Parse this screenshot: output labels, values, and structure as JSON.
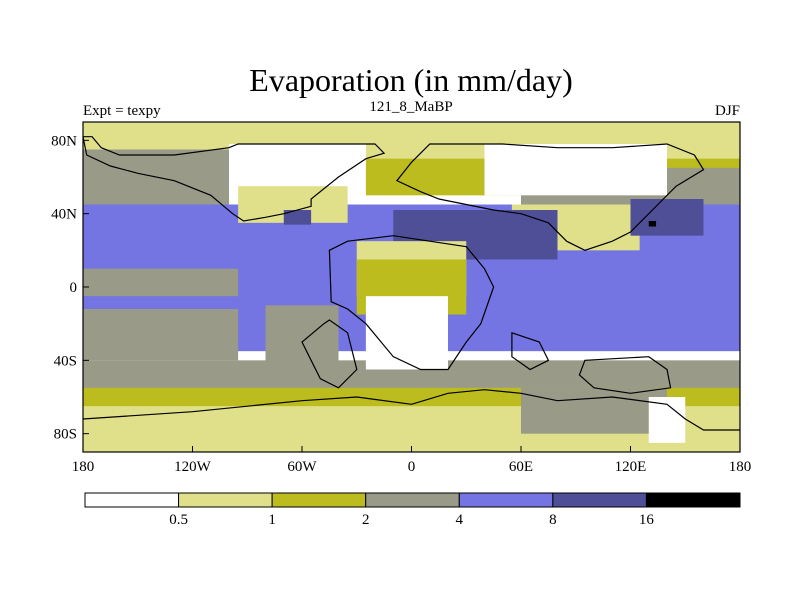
{
  "chart_data": {
    "type": "heatmap",
    "title": "Evaporation (in mm/day)",
    "left_label": "Expt = texpy",
    "center_label": "121_8_MaBP",
    "right_label": "DJF",
    "x_range": [
      -180,
      180
    ],
    "y_range": [
      -90,
      90
    ],
    "x_ticks": [
      {
        "value": -180,
        "label": "180"
      },
      {
        "value": -120,
        "label": "120W"
      },
      {
        "value": -60,
        "label": "60W"
      },
      {
        "value": 0,
        "label": "0"
      },
      {
        "value": 60,
        "label": "60E"
      },
      {
        "value": 120,
        "label": "120E"
      },
      {
        "value": 180,
        "label": "180"
      }
    ],
    "y_ticks": [
      {
        "value": 80,
        "label": "80N"
      },
      {
        "value": 40,
        "label": "40N"
      },
      {
        "value": 0,
        "label": "0"
      },
      {
        "value": -40,
        "label": "40S"
      },
      {
        "value": -80,
        "label": "80S"
      }
    ],
    "levels": [
      "0.5",
      "1",
      "2",
      "4",
      "8",
      "16"
    ],
    "bins": [
      {
        "range": "<0.5",
        "color": "#ffffff"
      },
      {
        "range": "0.5-1",
        "color": "#e0e08a"
      },
      {
        "range": "1-2",
        "color": "#bcbc1f"
      },
      {
        "range": "2-4",
        "color": "#9a9a88"
      },
      {
        "range": "4-8",
        "color": "#7474e2"
      },
      {
        "range": "8-16",
        "color": "#4f4f98"
      },
      {
        "range": ">16",
        "color": "#000000"
      }
    ],
    "regions": [
      {
        "name": "north-polar-band",
        "bin": 1,
        "lon": [
          -180,
          180
        ],
        "lat": [
          65,
          90
        ]
      },
      {
        "name": "north-mid-band",
        "bin": 2,
        "lon": [
          -180,
          180
        ],
        "lat": [
          50,
          70
        ]
      },
      {
        "name": "north-pacific-band",
        "bin": 3,
        "lon": [
          -180,
          -60
        ],
        "lat": [
          40,
          75
        ]
      },
      {
        "name": "north-east-asia-band",
        "bin": 3,
        "lon": [
          60,
          180
        ],
        "lat": [
          40,
          65
        ]
      },
      {
        "name": "tropical-ocean",
        "bin": 4,
        "lon": [
          -180,
          180
        ],
        "lat": [
          -35,
          45
        ]
      },
      {
        "name": "east-pacific-tongue",
        "bin": 3,
        "lon": [
          -180,
          -95
        ],
        "lat": [
          -5,
          10
        ]
      },
      {
        "name": "south-pacific-gray",
        "bin": 3,
        "lon": [
          -180,
          -95
        ],
        "lat": [
          -40,
          -12
        ]
      },
      {
        "name": "south-mid-band",
        "bin": 3,
        "lon": [
          -180,
          180
        ],
        "lat": [
          -60,
          -40
        ]
      },
      {
        "name": "southern-olive-band",
        "bin": 2,
        "lon": [
          -180,
          180
        ],
        "lat": [
          -70,
          -55
        ]
      },
      {
        "name": "southern-yellow-band",
        "bin": 1,
        "lon": [
          -180,
          180
        ],
        "lat": [
          -90,
          -65
        ]
      },
      {
        "name": "north-america",
        "bin": 0,
        "lon": [
          -100,
          -25
        ],
        "lat": [
          45,
          78
        ]
      },
      {
        "name": "eurasia",
        "bin": 0,
        "lon": [
          40,
          140
        ],
        "lat": [
          50,
          78
        ]
      },
      {
        "name": "north-america-south",
        "bin": 1,
        "lon": [
          -95,
          -35
        ],
        "lat": [
          35,
          55
        ]
      },
      {
        "name": "central-asia",
        "bin": 1,
        "lon": [
          55,
          125
        ],
        "lat": [
          20,
          45
        ]
      },
      {
        "name": "kuroshio",
        "bin": 5,
        "lon": [
          120,
          160
        ],
        "lat": [
          28,
          48
        ]
      },
      {
        "name": "tethys-north",
        "bin": 5,
        "lon": [
          -10,
          80
        ],
        "lat": [
          15,
          42
        ]
      },
      {
        "name": "gulf-stream",
        "bin": 5,
        "lon": [
          -70,
          -55
        ],
        "lat": [
          34,
          42
        ]
      },
      {
        "name": "africa-north",
        "bin": 1,
        "lon": [
          -30,
          30
        ],
        "lat": [
          -5,
          25
        ]
      },
      {
        "name": "africa-olive",
        "bin": 2,
        "lon": [
          -30,
          30
        ],
        "lat": [
          -15,
          15
        ]
      },
      {
        "name": "africa-south",
        "bin": 0,
        "lon": [
          -25,
          20
        ],
        "lat": [
          -45,
          -5
        ]
      },
      {
        "name": "south-america",
        "bin": 3,
        "lon": [
          -80,
          -40
        ],
        "lat": [
          -45,
          -10
        ]
      },
      {
        "name": "antarctica-east",
        "bin": 3,
        "lon": [
          60,
          140
        ],
        "lat": [
          -80,
          -55
        ]
      },
      {
        "name": "antarctica-west-ice",
        "bin": 0,
        "lon": [
          130,
          150
        ],
        "lat": [
          -85,
          -60
        ]
      },
      {
        "name": "black-dot",
        "bin": 6,
        "lon": [
          130,
          134
        ],
        "lat": [
          33,
          36
        ]
      }
    ],
    "continents": [
      {
        "name": "north-america-outline",
        "points": [
          [
            -175,
            82
          ],
          [
            -170,
            76
          ],
          [
            -160,
            72
          ],
          [
            -130,
            72
          ],
          [
            -100,
            76
          ],
          [
            -95,
            78
          ],
          [
            -60,
            78
          ],
          [
            -20,
            78
          ],
          [
            -15,
            73
          ],
          [
            -25,
            70
          ],
          [
            -40,
            60
          ],
          [
            -55,
            48
          ],
          [
            -55,
            44
          ],
          [
            -70,
            40
          ],
          [
            -80,
            38
          ],
          [
            -92,
            36
          ],
          [
            -98,
            40
          ],
          [
            -110,
            50
          ],
          [
            -130,
            58
          ],
          [
            -150,
            62
          ],
          [
            -165,
            66
          ],
          [
            -178,
            72
          ],
          [
            -180,
            82
          ]
        ]
      },
      {
        "name": "eurasia-outline",
        "points": [
          [
            10,
            78
          ],
          [
            50,
            78
          ],
          [
            80,
            76
          ],
          [
            110,
            76
          ],
          [
            140,
            78
          ],
          [
            155,
            72
          ],
          [
            160,
            64
          ],
          [
            145,
            55
          ],
          [
            135,
            45
          ],
          [
            127,
            37
          ],
          [
            120,
            30
          ],
          [
            110,
            25
          ],
          [
            95,
            20
          ],
          [
            85,
            25
          ],
          [
            75,
            35
          ],
          [
            60,
            40
          ],
          [
            45,
            42
          ],
          [
            30,
            45
          ],
          [
            15,
            48
          ],
          [
            5,
            52
          ],
          [
            -8,
            58
          ],
          [
            0,
            68
          ],
          [
            10,
            78
          ]
        ]
      },
      {
        "name": "africa-outline",
        "points": [
          [
            -45,
            20
          ],
          [
            -35,
            25
          ],
          [
            -10,
            28
          ],
          [
            10,
            25
          ],
          [
            30,
            22
          ],
          [
            40,
            10
          ],
          [
            45,
            0
          ],
          [
            38,
            -20
          ],
          [
            30,
            -30
          ],
          [
            20,
            -45
          ],
          [
            5,
            -45
          ],
          [
            -10,
            -38
          ],
          [
            -25,
            -20
          ],
          [
            -35,
            -12
          ],
          [
            -44,
            -8
          ],
          [
            -45,
            20
          ]
        ]
      },
      {
        "name": "south-america-outline",
        "points": [
          [
            -45,
            -18
          ],
          [
            -35,
            -25
          ],
          [
            -30,
            -45
          ],
          [
            -40,
            -55
          ],
          [
            -50,
            -50
          ],
          [
            -55,
            -40
          ],
          [
            -60,
            -30
          ],
          [
            -48,
            -20
          ],
          [
            -45,
            -18
          ]
        ]
      },
      {
        "name": "india-outline",
        "points": [
          [
            55,
            -25
          ],
          [
            70,
            -30
          ],
          [
            75,
            -40
          ],
          [
            65,
            -45
          ],
          [
            55,
            -38
          ],
          [
            55,
            -25
          ]
        ]
      },
      {
        "name": "australia-outline",
        "points": [
          [
            95,
            -40
          ],
          [
            130,
            -38
          ],
          [
            140,
            -45
          ],
          [
            142,
            -55
          ],
          [
            120,
            -58
          ],
          [
            100,
            -55
          ],
          [
            92,
            -48
          ],
          [
            95,
            -40
          ]
        ]
      },
      {
        "name": "antarctica-outline",
        "points": [
          [
            -180,
            -72
          ],
          [
            -120,
            -68
          ],
          [
            -60,
            -62
          ],
          [
            -30,
            -60
          ],
          [
            0,
            -64
          ],
          [
            20,
            -58
          ],
          [
            40,
            -56
          ],
          [
            60,
            -58
          ],
          [
            80,
            -62
          ],
          [
            110,
            -60
          ],
          [
            140,
            -64
          ],
          [
            150,
            -72
          ],
          [
            160,
            -78
          ],
          [
            180,
            -78
          ]
        ]
      }
    ]
  }
}
